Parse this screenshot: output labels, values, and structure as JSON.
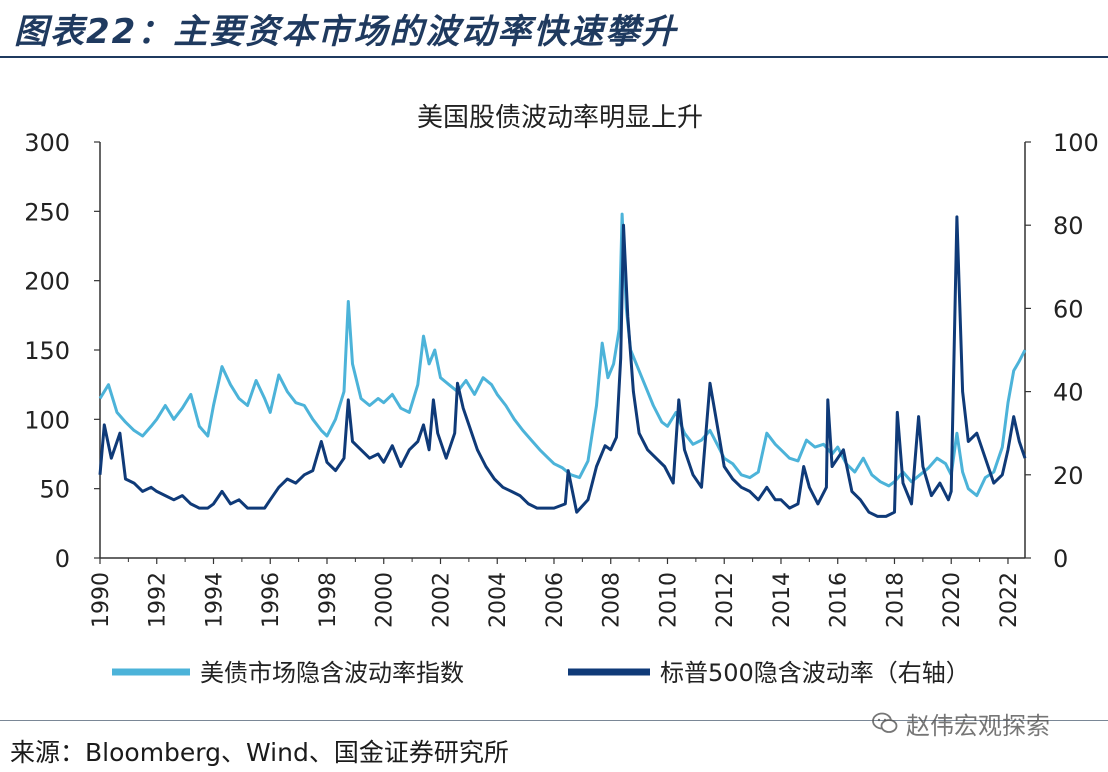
{
  "figure": {
    "title": "图表22：主要资本市场的波动率快速攀升",
    "source": "来源：Bloomberg、Wind、国金证券研究所",
    "watermark": "赵伟宏观探索",
    "watermark_icon": "wechat-icon"
  },
  "colors": {
    "title_color": "#1f3a5f",
    "series_light": "#4cb3d9",
    "series_dark": "#0f3a78",
    "axis": "#333333"
  },
  "chart_data": {
    "type": "line",
    "title": "美国股债波动率明显上升",
    "xlabel": "",
    "ylabel_left": "",
    "ylabel_right": "",
    "x_ticks": [
      "1990",
      "1992",
      "1994",
      "1996",
      "1998",
      "2000",
      "2002",
      "2004",
      "2006",
      "2008",
      "2010",
      "2012",
      "2014",
      "2016",
      "2018",
      "2020",
      "2022"
    ],
    "xlim": [
      1990,
      2022.6
    ],
    "y_left_ticks": [
      "0",
      "50",
      "100",
      "150",
      "200",
      "250",
      "300"
    ],
    "y_right_ticks": [
      "0",
      "20",
      "40",
      "60",
      "80",
      "100"
    ],
    "ylim_left": [
      0,
      300
    ],
    "ylim_right": [
      0,
      100
    ],
    "grid": false,
    "legend_position": "bottom",
    "series": [
      {
        "name": "美债市场隐含波动率指数",
        "axis": "left",
        "color": "#4cb3d9",
        "points": [
          [
            1990.0,
            115
          ],
          [
            1990.3,
            125
          ],
          [
            1990.6,
            105
          ],
          [
            1990.9,
            98
          ],
          [
            1991.2,
            92
          ],
          [
            1991.5,
            88
          ],
          [
            1991.8,
            95
          ],
          [
            1992.0,
            100
          ],
          [
            1992.3,
            110
          ],
          [
            1992.6,
            100
          ],
          [
            1992.9,
            108
          ],
          [
            1993.2,
            118
          ],
          [
            1993.5,
            95
          ],
          [
            1993.8,
            88
          ],
          [
            1994.0,
            110
          ],
          [
            1994.3,
            138
          ],
          [
            1994.6,
            125
          ],
          [
            1994.9,
            115
          ],
          [
            1995.2,
            110
          ],
          [
            1995.5,
            128
          ],
          [
            1995.8,
            115
          ],
          [
            1996.0,
            105
          ],
          [
            1996.3,
            132
          ],
          [
            1996.6,
            120
          ],
          [
            1996.9,
            112
          ],
          [
            1997.2,
            110
          ],
          [
            1997.5,
            100
          ],
          [
            1997.8,
            92
          ],
          [
            1998.0,
            88
          ],
          [
            1998.3,
            100
          ],
          [
            1998.6,
            120
          ],
          [
            1998.75,
            185
          ],
          [
            1998.9,
            140
          ],
          [
            1999.2,
            115
          ],
          [
            1999.5,
            110
          ],
          [
            1999.8,
            115
          ],
          [
            2000.0,
            112
          ],
          [
            2000.3,
            118
          ],
          [
            2000.6,
            108
          ],
          [
            2000.9,
            105
          ],
          [
            2001.2,
            125
          ],
          [
            2001.4,
            160
          ],
          [
            2001.6,
            140
          ],
          [
            2001.8,
            150
          ],
          [
            2002.0,
            130
          ],
          [
            2002.3,
            125
          ],
          [
            2002.6,
            120
          ],
          [
            2002.9,
            128
          ],
          [
            2003.2,
            118
          ],
          [
            2003.5,
            130
          ],
          [
            2003.8,
            125
          ],
          [
            2004.0,
            118
          ],
          [
            2004.3,
            110
          ],
          [
            2004.6,
            100
          ],
          [
            2004.9,
            92
          ],
          [
            2005.2,
            85
          ],
          [
            2005.5,
            78
          ],
          [
            2005.8,
            72
          ],
          [
            2006.0,
            68
          ],
          [
            2006.3,
            65
          ],
          [
            2006.6,
            60
          ],
          [
            2006.9,
            58
          ],
          [
            2007.2,
            70
          ],
          [
            2007.5,
            110
          ],
          [
            2007.7,
            155
          ],
          [
            2007.9,
            130
          ],
          [
            2008.1,
            140
          ],
          [
            2008.3,
            165
          ],
          [
            2008.4,
            248
          ],
          [
            2008.55,
            180
          ],
          [
            2008.7,
            150
          ],
          [
            2008.9,
            140
          ],
          [
            2009.2,
            125
          ],
          [
            2009.5,
            110
          ],
          [
            2009.8,
            98
          ],
          [
            2010.0,
            95
          ],
          [
            2010.3,
            105
          ],
          [
            2010.6,
            90
          ],
          [
            2010.9,
            82
          ],
          [
            2011.2,
            85
          ],
          [
            2011.5,
            92
          ],
          [
            2011.8,
            80
          ],
          [
            2012.0,
            72
          ],
          [
            2012.3,
            68
          ],
          [
            2012.6,
            60
          ],
          [
            2012.9,
            58
          ],
          [
            2013.2,
            62
          ],
          [
            2013.5,
            90
          ],
          [
            2013.8,
            82
          ],
          [
            2014.0,
            78
          ],
          [
            2014.3,
            72
          ],
          [
            2014.6,
            70
          ],
          [
            2014.9,
            85
          ],
          [
            2015.2,
            80
          ],
          [
            2015.5,
            82
          ],
          [
            2015.8,
            75
          ],
          [
            2016.0,
            80
          ],
          [
            2016.3,
            68
          ],
          [
            2016.6,
            62
          ],
          [
            2016.9,
            72
          ],
          [
            2017.2,
            60
          ],
          [
            2017.5,
            55
          ],
          [
            2017.8,
            52
          ],
          [
            2018.0,
            55
          ],
          [
            2018.3,
            62
          ],
          [
            2018.6,
            55
          ],
          [
            2018.9,
            60
          ],
          [
            2019.2,
            65
          ],
          [
            2019.5,
            72
          ],
          [
            2019.8,
            68
          ],
          [
            2020.0,
            60
          ],
          [
            2020.2,
            90
          ],
          [
            2020.4,
            62
          ],
          [
            2020.6,
            50
          ],
          [
            2020.9,
            45
          ],
          [
            2021.2,
            58
          ],
          [
            2021.5,
            62
          ],
          [
            2021.8,
            80
          ],
          [
            2022.0,
            112
          ],
          [
            2022.2,
            135
          ],
          [
            2022.4,
            142
          ],
          [
            2022.6,
            150
          ]
        ]
      },
      {
        "name": "标普500隐含波动率（右轴）",
        "axis": "right",
        "color": "#0f3a78",
        "points": [
          [
            1990.0,
            20
          ],
          [
            1990.15,
            32
          ],
          [
            1990.4,
            24
          ],
          [
            1990.7,
            30
          ],
          [
            1990.9,
            19
          ],
          [
            1991.2,
            18
          ],
          [
            1991.5,
            16
          ],
          [
            1991.8,
            17
          ],
          [
            1992.0,
            16
          ],
          [
            1992.3,
            15
          ],
          [
            1992.6,
            14
          ],
          [
            1992.9,
            15
          ],
          [
            1993.2,
            13
          ],
          [
            1993.5,
            12
          ],
          [
            1993.8,
            12
          ],
          [
            1994.0,
            13
          ],
          [
            1994.3,
            16
          ],
          [
            1994.6,
            13
          ],
          [
            1994.9,
            14
          ],
          [
            1995.2,
            12
          ],
          [
            1995.5,
            12
          ],
          [
            1995.8,
            12
          ],
          [
            1996.0,
            14
          ],
          [
            1996.3,
            17
          ],
          [
            1996.6,
            19
          ],
          [
            1996.9,
            18
          ],
          [
            1997.2,
            20
          ],
          [
            1997.5,
            21
          ],
          [
            1997.8,
            28
          ],
          [
            1998.0,
            23
          ],
          [
            1998.3,
            21
          ],
          [
            1998.6,
            24
          ],
          [
            1998.75,
            38
          ],
          [
            1998.9,
            28
          ],
          [
            1999.2,
            26
          ],
          [
            1999.5,
            24
          ],
          [
            1999.8,
            25
          ],
          [
            2000.0,
            23
          ],
          [
            2000.3,
            27
          ],
          [
            2000.6,
            22
          ],
          [
            2000.9,
            26
          ],
          [
            2001.2,
            28
          ],
          [
            2001.4,
            32
          ],
          [
            2001.6,
            26
          ],
          [
            2001.75,
            38
          ],
          [
            2001.9,
            30
          ],
          [
            2002.2,
            24
          ],
          [
            2002.5,
            30
          ],
          [
            2002.6,
            42
          ],
          [
            2002.8,
            36
          ],
          [
            2003.0,
            32
          ],
          [
            2003.3,
            26
          ],
          [
            2003.6,
            22
          ],
          [
            2003.9,
            19
          ],
          [
            2004.2,
            17
          ],
          [
            2004.5,
            16
          ],
          [
            2004.8,
            15
          ],
          [
            2005.1,
            13
          ],
          [
            2005.4,
            12
          ],
          [
            2005.7,
            12
          ],
          [
            2006.0,
            12
          ],
          [
            2006.4,
            13
          ],
          [
            2006.5,
            21
          ],
          [
            2006.8,
            11
          ],
          [
            2007.2,
            14
          ],
          [
            2007.5,
            22
          ],
          [
            2007.8,
            27
          ],
          [
            2008.0,
            26
          ],
          [
            2008.2,
            29
          ],
          [
            2008.35,
            48
          ],
          [
            2008.45,
            80
          ],
          [
            2008.6,
            58
          ],
          [
            2008.8,
            40
          ],
          [
            2009.0,
            30
          ],
          [
            2009.3,
            26
          ],
          [
            2009.6,
            24
          ],
          [
            2009.9,
            22
          ],
          [
            2010.2,
            18
          ],
          [
            2010.4,
            38
          ],
          [
            2010.6,
            26
          ],
          [
            2010.9,
            20
          ],
          [
            2011.2,
            17
          ],
          [
            2011.5,
            42
          ],
          [
            2011.8,
            30
          ],
          [
            2012.0,
            22
          ],
          [
            2012.3,
            19
          ],
          [
            2012.6,
            17
          ],
          [
            2012.9,
            16
          ],
          [
            2013.2,
            14
          ],
          [
            2013.5,
            17
          ],
          [
            2013.8,
            14
          ],
          [
            2014.0,
            14
          ],
          [
            2014.3,
            12
          ],
          [
            2014.6,
            13
          ],
          [
            2014.8,
            22
          ],
          [
            2015.0,
            17
          ],
          [
            2015.3,
            13
          ],
          [
            2015.6,
            17
          ],
          [
            2015.65,
            38
          ],
          [
            2015.8,
            22
          ],
          [
            2016.0,
            24
          ],
          [
            2016.2,
            26
          ],
          [
            2016.5,
            16
          ],
          [
            2016.8,
            14
          ],
          [
            2017.1,
            11
          ],
          [
            2017.4,
            10
          ],
          [
            2017.7,
            10
          ],
          [
            2018.0,
            11
          ],
          [
            2018.1,
            35
          ],
          [
            2018.3,
            18
          ],
          [
            2018.6,
            13
          ],
          [
            2018.85,
            34
          ],
          [
            2019.0,
            22
          ],
          [
            2019.3,
            15
          ],
          [
            2019.6,
            18
          ],
          [
            2019.9,
            14
          ],
          [
            2020.0,
            16
          ],
          [
            2020.2,
            82
          ],
          [
            2020.4,
            40
          ],
          [
            2020.6,
            28
          ],
          [
            2020.9,
            30
          ],
          [
            2021.2,
            24
          ],
          [
            2021.5,
            18
          ],
          [
            2021.8,
            20
          ],
          [
            2022.0,
            26
          ],
          [
            2022.2,
            34
          ],
          [
            2022.4,
            28
          ],
          [
            2022.6,
            24
          ]
        ]
      }
    ]
  }
}
